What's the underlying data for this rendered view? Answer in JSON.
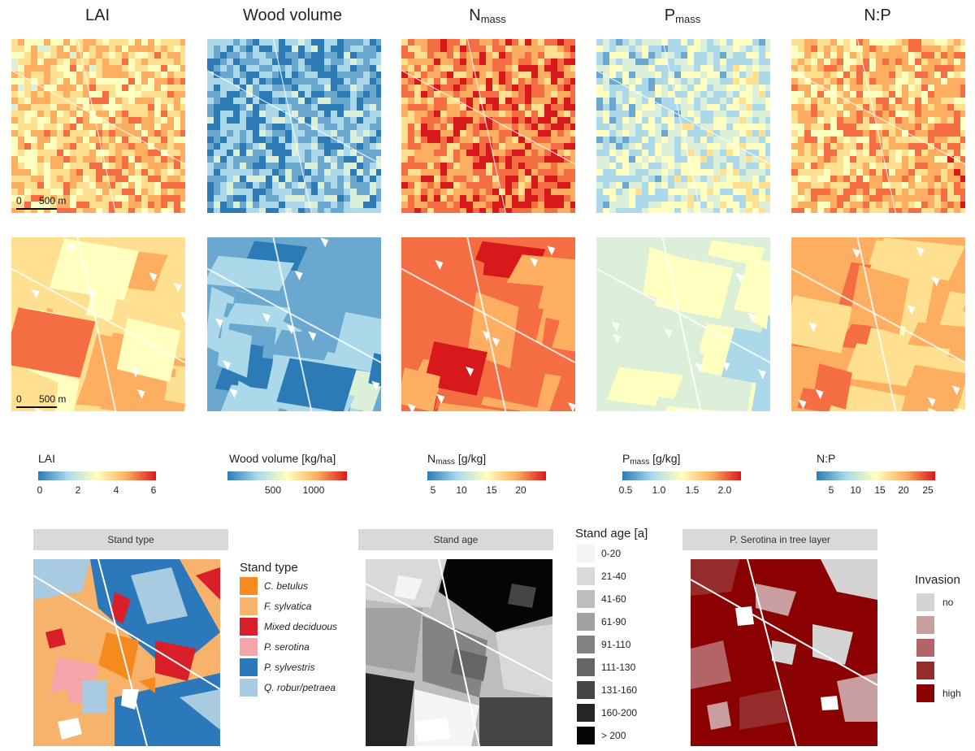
{
  "columns": [
    {
      "title": "LAI",
      "sub": ""
    },
    {
      "title": "Wood volume",
      "sub": ""
    },
    {
      "title": "N",
      "sub": "mass"
    },
    {
      "title": "P",
      "sub": "mass"
    },
    {
      "title": "N:P",
      "sub": ""
    }
  ],
  "scalebar": {
    "zero": "0",
    "len": "500 m"
  },
  "colorbars": [
    {
      "title": "LAI",
      "sub": "",
      "unit": "",
      "ticks": [
        "0",
        "2",
        "4",
        "6"
      ]
    },
    {
      "title": "Wood volume [kg/ha]",
      "sub": "",
      "unit": "",
      "ticks": [
        "500",
        "1000"
      ]
    },
    {
      "title": "N",
      "sub": "mass",
      "unit": " [g/kg]",
      "ticks": [
        "5",
        "10",
        "15",
        "20"
      ]
    },
    {
      "title": "P",
      "sub": "mass",
      "unit": " [g/kg]",
      "ticks": [
        "0.5",
        "1.0",
        "1.5",
        "2.0"
      ]
    },
    {
      "title": "N:P",
      "sub": "",
      "unit": "",
      "ticks": [
        "5",
        "10",
        "15",
        "20",
        "25"
      ]
    }
  ],
  "stand_type": {
    "strip": "Stand type",
    "legend_title": "Stand type",
    "items": [
      {
        "label": "C. betulus",
        "color": "#f58a1f"
      },
      {
        "label": "F. sylvatica",
        "color": "#f7b36b"
      },
      {
        "label": "Mixed deciduous",
        "color": "#d9202a"
      },
      {
        "label": "P. serotina",
        "color": "#f4a5a9"
      },
      {
        "label": "P. sylvestris",
        "color": "#2b78ba"
      },
      {
        "label": "Q. robur/petraea",
        "color": "#a8cbe2"
      }
    ]
  },
  "stand_age": {
    "strip": "Stand age",
    "legend_title": "Stand age [a]",
    "items": [
      {
        "label": "0-20",
        "color": "#f4f4f4"
      },
      {
        "label": "21-40",
        "color": "#d9d9d9"
      },
      {
        "label": "41-60",
        "color": "#bdbdbd"
      },
      {
        "label": "61-90",
        "color": "#a1a1a1"
      },
      {
        "label": "91-110",
        "color": "#838383"
      },
      {
        "label": "111-130",
        "color": "#656565"
      },
      {
        "label": "131-160",
        "color": "#454545"
      },
      {
        "label": "160-200",
        "color": "#252525"
      },
      {
        "label": "> 200",
        "color": "#050505"
      }
    ]
  },
  "invasion": {
    "strip": "P. Serotina in tree layer",
    "legend_title": "Invasion",
    "items": [
      {
        "label": "no",
        "color": "#d4d4d4"
      },
      {
        "label": "",
        "color": "#c99ea0"
      },
      {
        "label": "",
        "color": "#b26466"
      },
      {
        "label": "",
        "color": "#962b2b"
      },
      {
        "label": "high",
        "color": "#8b0000"
      }
    ]
  }
}
